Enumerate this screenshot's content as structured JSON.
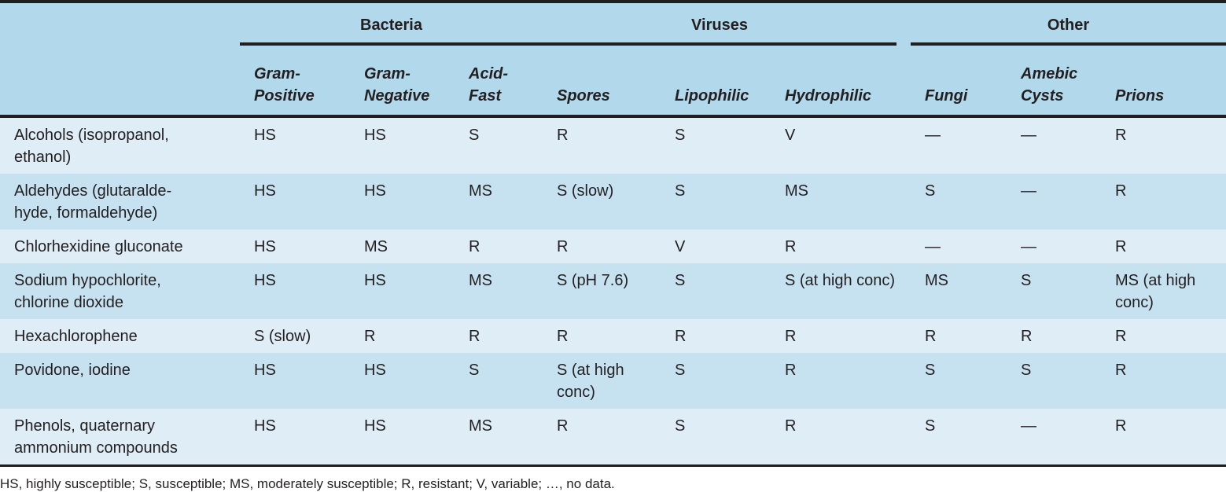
{
  "groups": {
    "bacteria": "Bacteria",
    "viruses": "Viruses",
    "other": "Other"
  },
  "columns": [
    [
      "Gram-",
      "Positive"
    ],
    [
      "Gram-",
      "Negative"
    ],
    [
      "Acid-",
      "Fast"
    ],
    [
      "",
      "Spores"
    ],
    [
      "",
      "Lipophilic"
    ],
    [
      "",
      "Hydrophilic"
    ],
    [
      "",
      "Fungi"
    ],
    [
      "Amebic",
      "Cysts"
    ],
    [
      "",
      "Prions"
    ]
  ],
  "rows": [
    {
      "agent": "Alcohols (isopropanol, ethanol)",
      "values": [
        "HS",
        "HS",
        "S",
        "R",
        "S",
        "V",
        "—",
        "—",
        "R"
      ]
    },
    {
      "agent": "Aldehydes (glutaralde-hyde, formaldehyde)",
      "values": [
        "HS",
        "HS",
        "MS",
        "S (slow)",
        "S",
        "MS",
        "S",
        "—",
        "R"
      ]
    },
    {
      "agent": "Chlorhexidine gluconate",
      "values": [
        "HS",
        "MS",
        "R",
        "R",
        "V",
        "R",
        "—",
        "—",
        "R"
      ]
    },
    {
      "agent": "Sodium hypochlorite, chlorine dioxide",
      "values": [
        "HS",
        "HS",
        "MS",
        "S (pH 7.6)",
        "S",
        "S (at high conc)",
        "MS",
        "S",
        "MS (at high conc)"
      ]
    },
    {
      "agent": "Hexachlorophene",
      "values": [
        "S (slow)",
        "R",
        "R",
        "R",
        "R",
        "R",
        "R",
        "R",
        "R"
      ]
    },
    {
      "agent": "Povidone, iodine",
      "values": [
        "HS",
        "HS",
        "S",
        "S (at high conc)",
        "S",
        "R",
        "S",
        "S",
        "R"
      ]
    },
    {
      "agent": "Phenols, quaternary ammonium compounds",
      "values": [
        "HS",
        "HS",
        "MS",
        "R",
        "S",
        "R",
        "S",
        "—",
        "R"
      ]
    }
  ],
  "footnote": "HS, highly susceptible; S, susceptible; MS, moderately susceptible; R, resistant; V, variable; …, no data."
}
